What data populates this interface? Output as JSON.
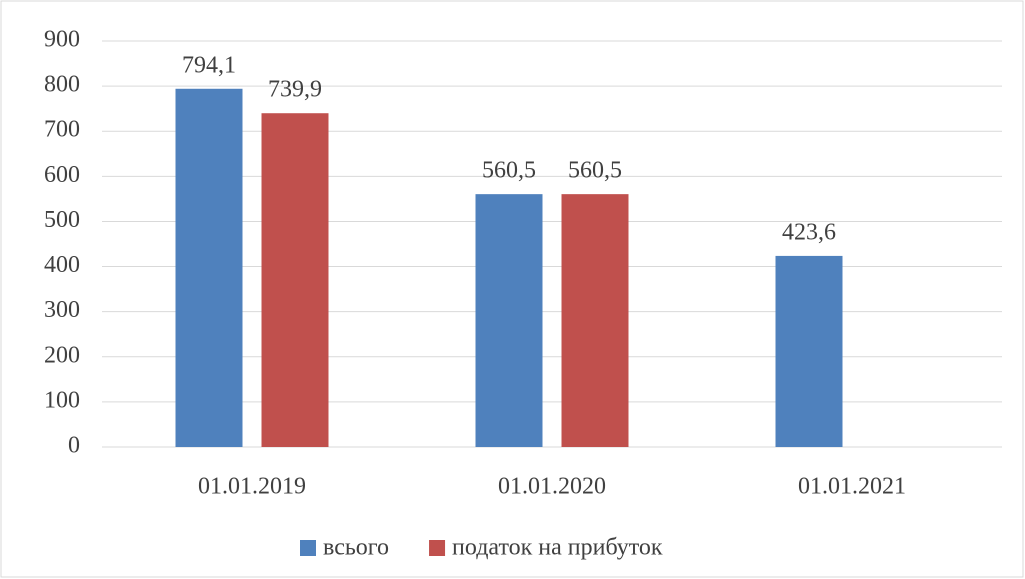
{
  "chart_data": {
    "type": "bar",
    "categories": [
      "01.01.2019",
      "01.01.2020",
      "01.01.2021"
    ],
    "series": [
      {
        "name": "всього",
        "color": "#4f81bd",
        "values": [
          794.1,
          560.5,
          423.6
        ],
        "value_labels": [
          "794,1",
          "560,5",
          "423,6"
        ]
      },
      {
        "name": "податок на прибуток",
        "color": "#c0504d",
        "values": [
          739.9,
          560.5,
          null
        ],
        "value_labels": [
          "739,9",
          "560,5",
          null
        ]
      }
    ],
    "ylim": [
      0,
      900
    ],
    "yticks": [
      0,
      100,
      200,
      300,
      400,
      500,
      600,
      700,
      800,
      900
    ],
    "grid": true,
    "legend": "bottom"
  }
}
